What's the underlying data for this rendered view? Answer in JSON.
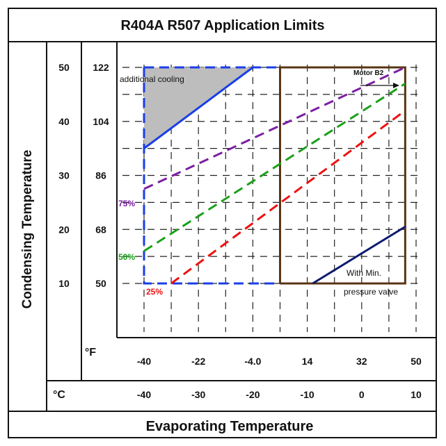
{
  "chart_data": {
    "type": "line",
    "title": "R404A R507  Application Limits",
    "xlabel": "Evaporating Temperature",
    "ylabel": "Condensing Temperature",
    "x_unit_f": "°F",
    "x_unit_c": "°C",
    "x_ticks_f": [
      "-40",
      "-22",
      "-4.0",
      "14",
      "32",
      "50"
    ],
    "x_ticks_c": [
      "-40",
      "-30",
      "-20",
      "-10",
      "0",
      "10"
    ],
    "y_ticks_c": [
      "50",
      "40",
      "30",
      "20",
      "10"
    ],
    "y_ticks_f": [
      "122",
      "104",
      "86",
      "68",
      "50"
    ],
    "xlim_c": [
      -40,
      10
    ],
    "ylim_c": [
      10,
      50
    ],
    "grid": true,
    "series": [
      {
        "name": "75%",
        "color": "#7b1fa2",
        "dash": true,
        "points": [
          [
            -40,
            27.5
          ],
          [
            8,
            50
          ]
        ]
      },
      {
        "name": "50%",
        "color": "#1aa01a",
        "dash": true,
        "points": [
          [
            -40,
            16
          ],
          [
            8,
            47
          ]
        ]
      },
      {
        "name": "25%",
        "color": "#ee1111",
        "dash": true,
        "points": [
          [
            -35,
            10
          ],
          [
            8,
            42
          ]
        ]
      }
    ],
    "boundaries": [
      {
        "color": "#1a3ee8",
        "dash": true,
        "points": [
          [
            -40,
            50
          ],
          [
            -40,
            10
          ],
          [
            -15,
            10
          ]
        ]
      },
      {
        "color": "#1a3ee8",
        "dash": true,
        "points": [
          [
            -40,
            50
          ],
          [
            -15,
            50
          ]
        ]
      },
      {
        "color": "#1a3ee8",
        "dash": false,
        "points": [
          [
            -40,
            35
          ],
          [
            -20,
            50
          ]
        ]
      },
      {
        "color": "#5a3414",
        "dash": false,
        "points": [
          [
            -15,
            10
          ],
          [
            -15,
            50
          ],
          [
            8,
            50
          ],
          [
            8,
            10
          ],
          [
            -15,
            10
          ]
        ]
      },
      {
        "color": "#0b1a6e",
        "dash": false,
        "points": [
          [
            -9,
            10
          ],
          [
            8,
            20.5
          ]
        ]
      }
    ],
    "shaded_region": {
      "name": "additional cooling",
      "color": "#bdbdbd",
      "points": [
        [
          -40,
          50
        ],
        [
          -20,
          50
        ],
        [
          -40,
          35
        ]
      ]
    },
    "annotations": {
      "additional_cooling": "additional cooling",
      "motor": "Motor B2",
      "with_min_1": "With  Min.",
      "with_min_2": "pressure  valve",
      "pct_75": "75%",
      "pct_50": "50%",
      "pct_25": "25%"
    }
  }
}
